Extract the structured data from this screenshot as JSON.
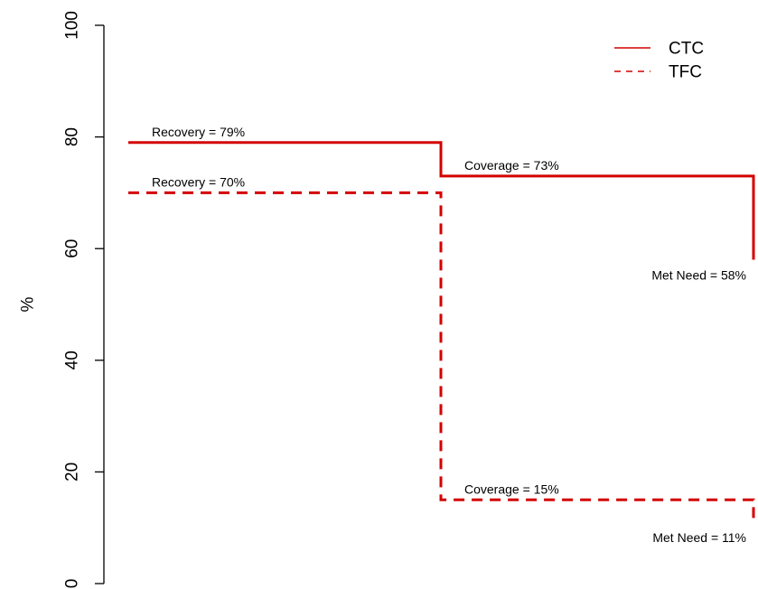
{
  "chart_data": {
    "type": "line",
    "ylabel": "%",
    "ylim": [
      0,
      100
    ],
    "yticks": [
      0,
      20,
      40,
      60,
      80,
      100
    ],
    "legend_position": "top-right",
    "colors": {
      "series": "#d40000"
    },
    "stages": [
      "Recovery",
      "Coverage",
      "Met Need"
    ],
    "series": [
      {
        "name": "CTC",
        "line_style": "solid",
        "values": [
          79,
          73,
          58
        ],
        "labels": [
          "Recovery = 79%",
          "Coverage = 73%",
          "Met Need = 58%"
        ]
      },
      {
        "name": "TFC",
        "line_style": "dashed",
        "values": [
          70,
          15,
          11
        ],
        "labels": [
          "Recovery = 70%",
          "Coverage = 15%",
          "Met Need = 11%"
        ]
      }
    ]
  }
}
